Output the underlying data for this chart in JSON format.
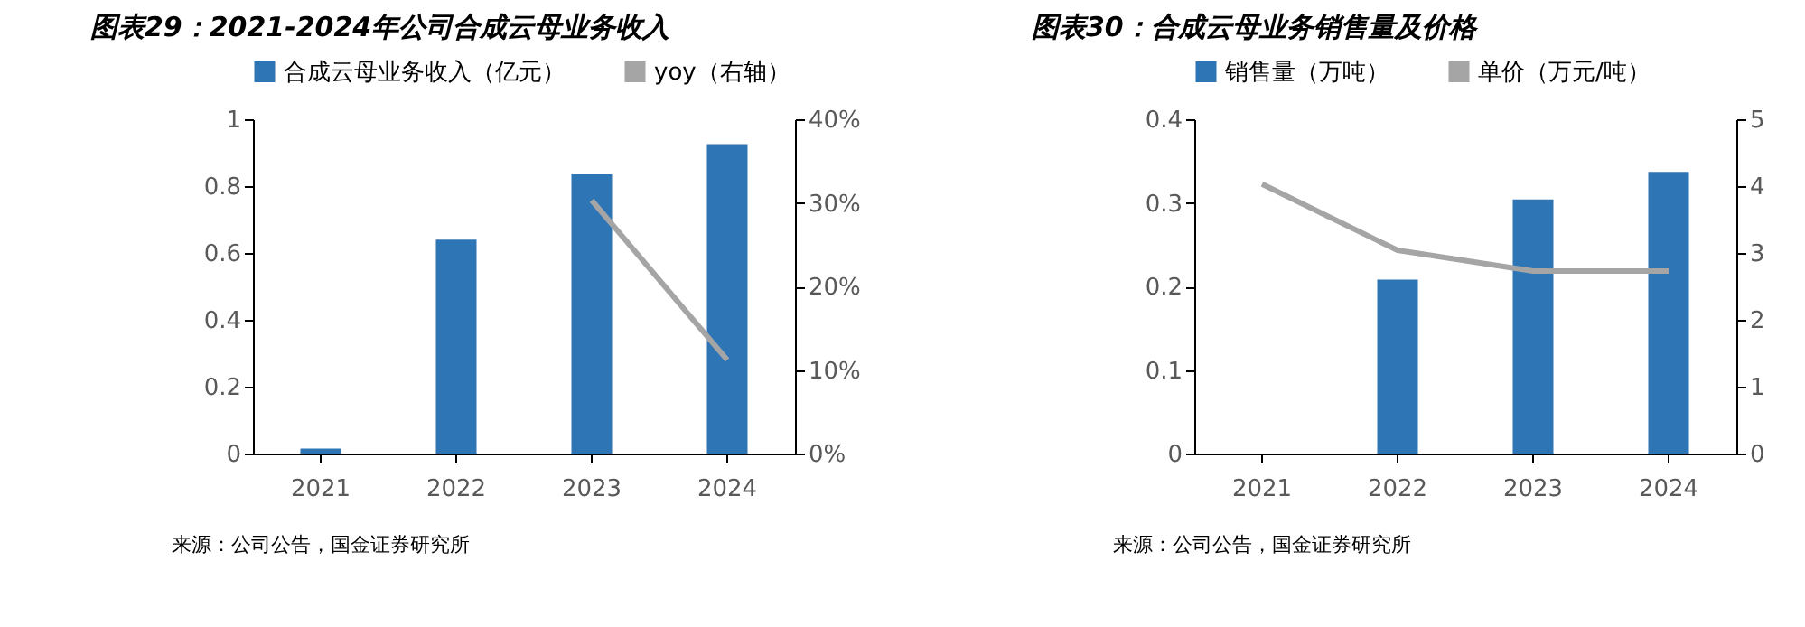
{
  "chart_data": [
    {
      "type": "bar",
      "title": "图表29：2021-2024年公司合成云母业务收入",
      "categories": [
        "2021",
        "2022",
        "2023",
        "2024"
      ],
      "series": [
        {
          "name": "合成云母业务收入（亿元）",
          "color": "#2e75b6",
          "values": [
            0.015,
            0.64,
            0.835,
            0.926
          ]
        },
        {
          "name": "yoy（右轴）",
          "type": "line",
          "axis": "y2",
          "color": "#a5a5a5",
          "values": [
            null,
            null,
            30.3,
            11.2
          ]
        }
      ],
      "ylim": [
        0,
        1
      ],
      "yticks": [
        0,
        0.2,
        0.4,
        0.6,
        0.8,
        1
      ],
      "y2lim": [
        0,
        40
      ],
      "y2ticks": [
        {
          "value": 0,
          "label": "0%"
        },
        {
          "value": 10,
          "label": "10%"
        },
        {
          "value": 20,
          "label": "20%"
        },
        {
          "value": 30,
          "label": "30%"
        },
        {
          "value": 40,
          "label": "40%"
        }
      ],
      "legend": "top",
      "grid": false,
      "annotations": [
        "来源：公司公告，国金证券研究所"
      ]
    },
    {
      "type": "bar",
      "title": "图表30：合成云母业务销售量及价格",
      "categories": [
        "2021",
        "2022",
        "2023",
        "2024"
      ],
      "series": [
        {
          "name": "销售量（万吨）",
          "color": "#2e75b6",
          "values": [
            null,
            0.208,
            0.304,
            0.337
          ]
        },
        {
          "name": "单价（万元/吨）",
          "type": "line",
          "axis": "y2",
          "color": "#a5a5a5",
          "values": [
            4.03,
            3.04,
            2.73,
            2.73
          ]
        }
      ],
      "ylim": [
        0,
        0.4
      ],
      "yticks": [
        0,
        0.1,
        0.2,
        0.3,
        0.4
      ],
      "y2lim": [
        0,
        5
      ],
      "y2ticks": [
        0,
        1,
        2,
        3,
        4,
        5
      ],
      "legend": "top",
      "grid": false,
      "annotations": [
        "来源：公司公告，国金证券研究所"
      ]
    }
  ]
}
